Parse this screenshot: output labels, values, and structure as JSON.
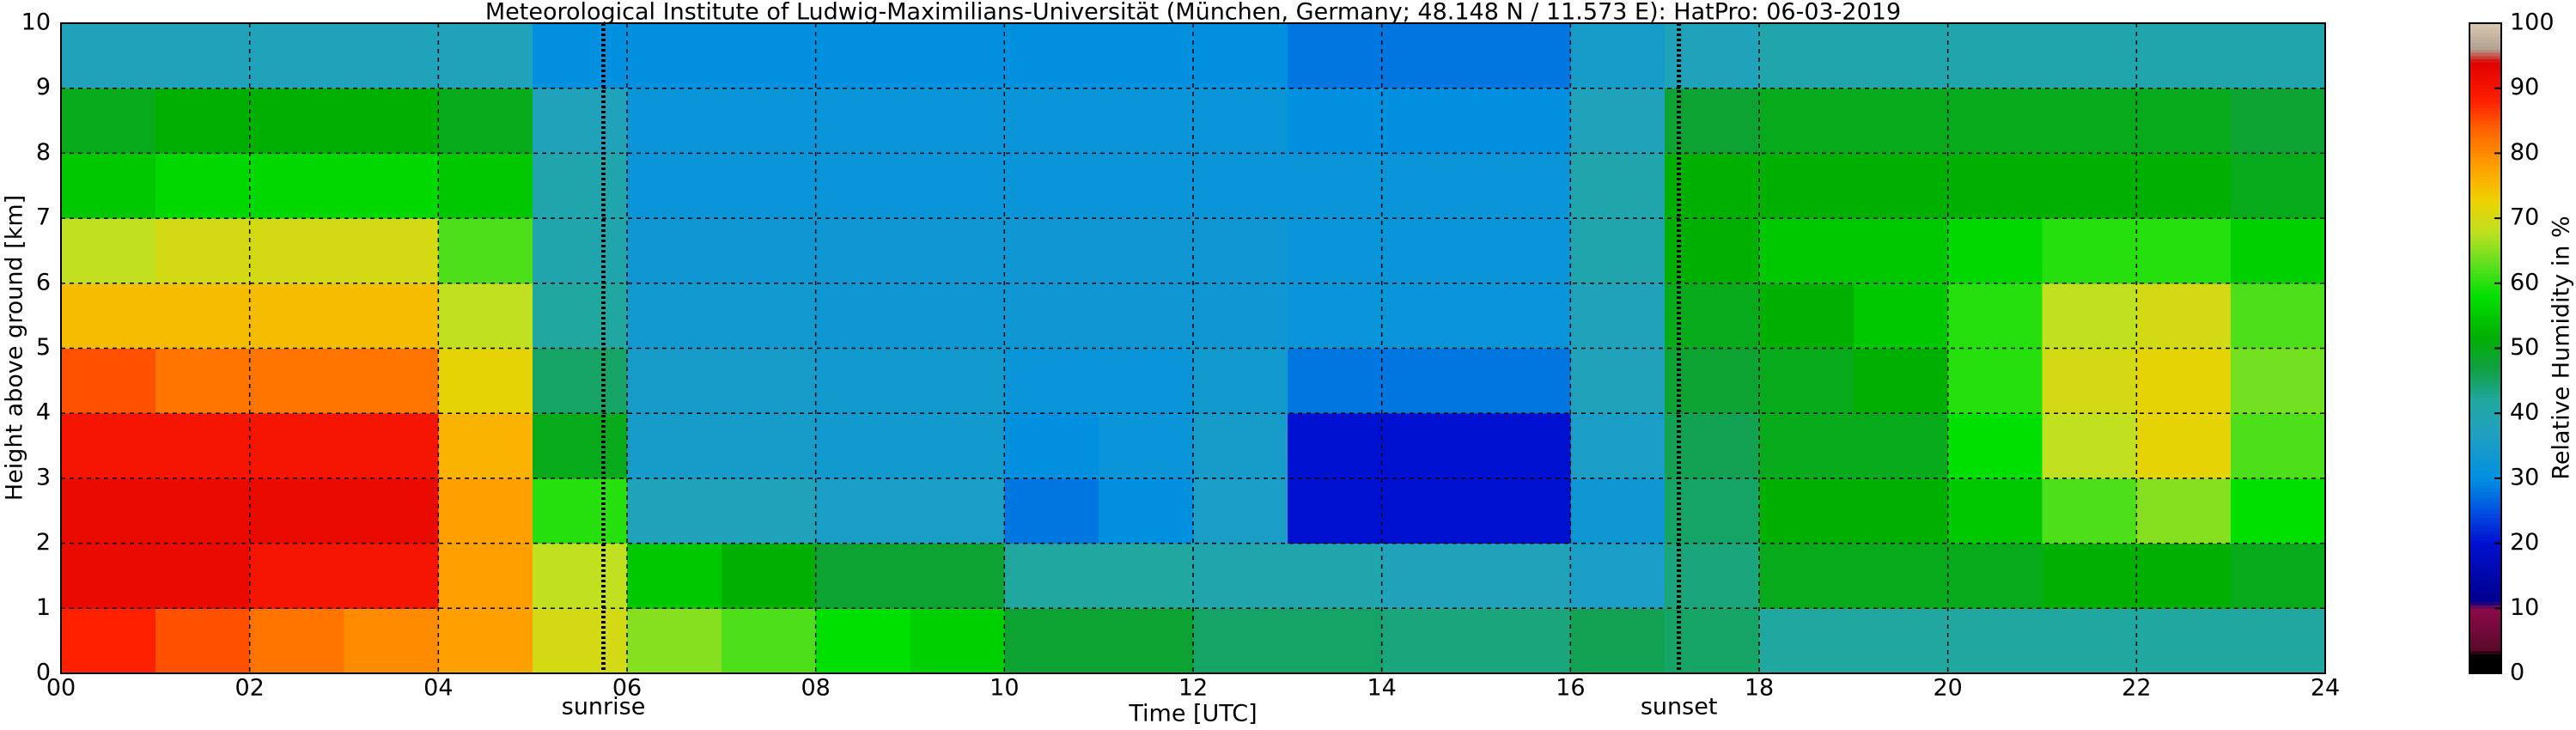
{
  "chart_data": {
    "type": "heatmap",
    "title": "Meteorological Institute of Ludwig-Maximilians-Universität (München, Germany; 48.148 N / 11.573 E):    HatPro: 06-03-2019",
    "x_label": "Time [UTC]",
    "y_label": "Height above ground [km]",
    "xbins": [
      0,
      1,
      2,
      3,
      4,
      5,
      6,
      7,
      8,
      9,
      10,
      11,
      12,
      13,
      14,
      15,
      16,
      17,
      18,
      19,
      20,
      21,
      22,
      23,
      24
    ],
    "ybins": [
      0,
      1,
      2,
      3,
      4,
      5,
      6,
      7,
      8,
      9,
      10
    ],
    "z": [
      [
        88,
        92,
        92,
        90,
        85,
        75,
        68,
        55,
        50,
        38
      ],
      [
        85,
        92,
        92,
        90,
        82,
        75,
        70,
        57,
        52,
        38
      ],
      [
        82,
        90,
        92,
        90,
        82,
        75,
        70,
        57,
        52,
        38
      ],
      [
        80,
        90,
        92,
        90,
        82,
        75,
        70,
        57,
        52,
        38
      ],
      [
        78,
        78,
        78,
        76,
        72,
        68,
        62,
        55,
        50,
        38
      ],
      [
        70,
        68,
        60,
        50,
        45,
        42,
        40,
        40,
        38,
        30
      ],
      [
        65,
        55,
        38,
        35,
        35,
        34,
        33,
        32,
        32,
        30
      ],
      [
        62,
        52,
        38,
        35,
        35,
        34,
        33,
        32,
        32,
        30
      ],
      [
        58,
        48,
        36,
        34,
        34,
        33,
        33,
        32,
        32,
        30
      ],
      [
        56,
        48,
        36,
        34,
        34,
        33,
        33,
        32,
        32,
        30
      ],
      [
        48,
        42,
        28,
        30,
        32,
        33,
        33,
        32,
        32,
        30
      ],
      [
        48,
        42,
        30,
        32,
        32,
        33,
        33,
        32,
        32,
        30
      ],
      [
        45,
        40,
        36,
        35,
        34,
        33,
        33,
        32,
        32,
        30
      ],
      [
        45,
        40,
        20,
        20,
        28,
        32,
        32,
        32,
        30,
        28
      ],
      [
        44,
        38,
        20,
        20,
        28,
        32,
        32,
        32,
        30,
        28
      ],
      [
        44,
        38,
        20,
        20,
        28,
        32,
        32,
        32,
        30,
        28
      ],
      [
        46,
        36,
        33,
        36,
        38,
        38,
        40,
        40,
        38,
        35
      ],
      [
        45,
        44,
        45,
        46,
        48,
        50,
        52,
        52,
        48,
        38
      ],
      [
        42,
        50,
        52,
        50,
        50,
        52,
        55,
        52,
        50,
        40
      ],
      [
        42,
        50,
        52,
        50,
        52,
        55,
        55,
        52,
        50,
        40
      ],
      [
        42,
        50,
        55,
        58,
        60,
        60,
        57,
        52,
        50,
        40
      ],
      [
        42,
        52,
        62,
        68,
        70,
        68,
        60,
        52,
        50,
        40
      ],
      [
        42,
        52,
        65,
        72,
        72,
        70,
        60,
        52,
        50,
        40
      ],
      [
        42,
        50,
        58,
        62,
        64,
        62,
        56,
        50,
        48,
        40
      ]
    ],
    "xlim": [
      0,
      24
    ],
    "ylim": [
      0,
      10
    ],
    "xticks": [
      {
        "value": 0,
        "label": "00"
      },
      {
        "value": 2,
        "label": "02"
      },
      {
        "value": 4,
        "label": "04"
      },
      {
        "value": 6,
        "label": "06"
      },
      {
        "value": 8,
        "label": "08"
      },
      {
        "value": 10,
        "label": "10"
      },
      {
        "value": 12,
        "label": "12"
      },
      {
        "value": 14,
        "label": "14"
      },
      {
        "value": 16,
        "label": "16"
      },
      {
        "value": 18,
        "label": "18"
      },
      {
        "value": 20,
        "label": "20"
      },
      {
        "value": 22,
        "label": "22"
      },
      {
        "value": 24,
        "label": "24"
      }
    ],
    "yticks": [
      0,
      1,
      2,
      3,
      4,
      5,
      6,
      7,
      8,
      9,
      10
    ],
    "grid": true,
    "annotations": [
      {
        "text": "sunrise",
        "x": 5.75
      },
      {
        "text": "sunset",
        "x": 17.15
      }
    ],
    "colorscale": [
      [
        0,
        "#000000"
      ],
      [
        3,
        "#000000"
      ],
      [
        3.5,
        "#5a0a2a"
      ],
      [
        10,
        "#8b0a4a"
      ],
      [
        11,
        "#00008b"
      ],
      [
        20,
        "#0010d0"
      ],
      [
        25,
        "#0050e0"
      ],
      [
        30,
        "#0090e0"
      ],
      [
        37,
        "#20a0c0"
      ],
      [
        42,
        "#20a8a0"
      ],
      [
        47,
        "#10a040"
      ],
      [
        52,
        "#00b000"
      ],
      [
        58,
        "#00e000"
      ],
      [
        63,
        "#60e020"
      ],
      [
        68,
        "#c0e020"
      ],
      [
        73,
        "#f0d000"
      ],
      [
        78,
        "#ffa000"
      ],
      [
        84,
        "#ff6000"
      ],
      [
        88,
        "#ff2000"
      ],
      [
        94,
        "#e00000"
      ],
      [
        96,
        "#b0a090"
      ],
      [
        100,
        "#d8c8b0"
      ]
    ],
    "colorbar": {
      "label": "Relative Humidity in %",
      "lim": [
        0,
        100
      ],
      "ticks": [
        0,
        10,
        20,
        30,
        40,
        50,
        60,
        70,
        80,
        90,
        100
      ]
    }
  }
}
